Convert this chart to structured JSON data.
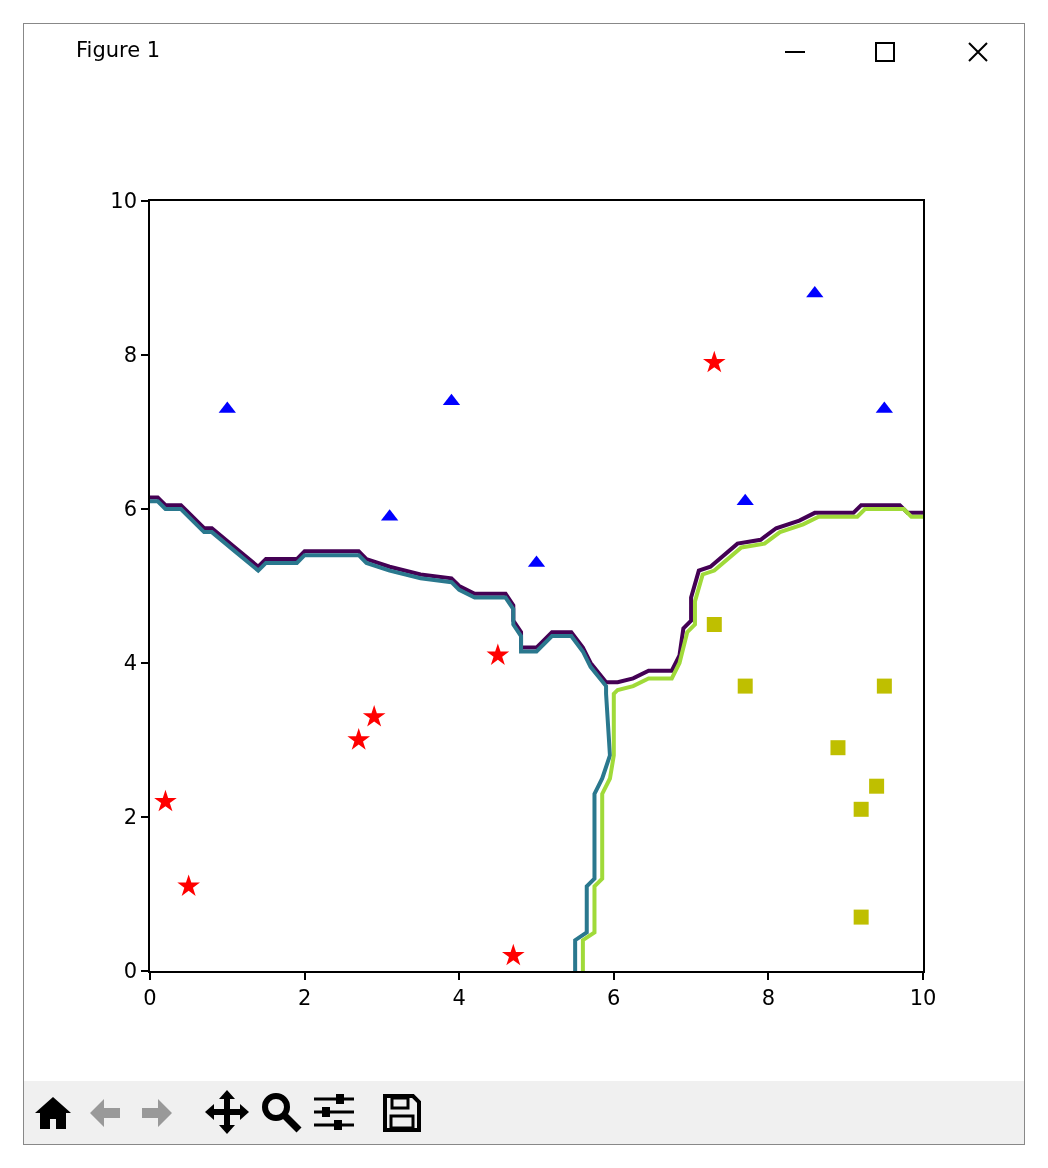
{
  "chart_data": {
    "type": "scatter",
    "annotations": [
      "Figure 1"
    ],
    "xlim": [
      0,
      10
    ],
    "ylim": [
      0,
      10
    ],
    "xticks": [
      0,
      2,
      4,
      6,
      8,
      10
    ],
    "yticks": [
      0,
      2,
      4,
      6,
      8,
      10
    ],
    "series": [
      {
        "type": "line",
        "color": "#440154",
        "marker": "none",
        "line_style": "solid",
        "x": [
          0,
          0.1,
          0.2,
          0.4,
          0.7,
          0.8,
          1.1,
          1.4,
          1.5,
          1.9,
          2.0,
          2.7,
          2.8,
          3.1,
          3.5,
          3.9,
          4.0,
          4.2,
          4.6,
          4.7,
          4.7,
          4.8,
          4.8,
          5.0,
          5.2,
          5.45,
          5.6,
          5.7,
          5.9,
          6.05,
          6.25,
          6.45,
          6.75,
          6.85,
          6.9,
          7.0,
          7.0,
          7.1,
          7.25,
          7.6,
          7.9,
          8.1,
          8.4,
          8.6,
          9.1,
          9.2,
          9.7,
          9.8,
          10
        ],
        "values": [
          6.15,
          6.15,
          6.05,
          6.05,
          5.75,
          5.75,
          5.5,
          5.25,
          5.35,
          5.35,
          5.45,
          5.45,
          5.35,
          5.25,
          5.15,
          5.1,
          5.0,
          4.9,
          4.9,
          4.75,
          4.55,
          4.4,
          4.2,
          4.2,
          4.4,
          4.4,
          4.2,
          4.0,
          3.75,
          3.75,
          3.8,
          3.9,
          3.9,
          4.1,
          4.45,
          4.55,
          4.85,
          5.2,
          5.25,
          5.55,
          5.6,
          5.75,
          5.85,
          5.95,
          5.95,
          6.05,
          6.05,
          5.95,
          5.95
        ]
      },
      {
        "type": "line",
        "color": "#2a788e",
        "marker": "none",
        "line_style": "solid",
        "x": [
          0,
          0.1,
          0.2,
          0.4,
          0.7,
          0.8,
          1.1,
          1.4,
          1.5,
          1.9,
          2.0,
          2.7,
          2.8,
          3.1,
          3.5,
          3.9,
          4.0,
          4.2,
          4.6,
          4.7,
          4.7,
          4.8,
          4.8,
          5.0,
          5.2,
          5.45,
          5.6,
          5.7,
          5.9,
          5.9,
          5.95,
          5.85,
          5.75,
          5.75,
          5.65,
          5.65,
          5.5,
          5.5
        ],
        "values": [
          6.1,
          6.1,
          6.0,
          6.0,
          5.7,
          5.7,
          5.45,
          5.2,
          5.3,
          5.3,
          5.4,
          5.4,
          5.3,
          5.2,
          5.1,
          5.05,
          4.95,
          4.85,
          4.85,
          4.7,
          4.5,
          4.35,
          4.15,
          4.15,
          4.35,
          4.35,
          4.15,
          3.95,
          3.7,
          3.6,
          2.8,
          2.5,
          2.3,
          1.2,
          1.1,
          0.5,
          0.4,
          0
        ]
      },
      {
        "type": "line",
        "color": "#a0da39",
        "marker": "none",
        "line_style": "solid",
        "x": [
          5.6,
          5.6,
          5.75,
          5.75,
          5.85,
          5.85,
          5.95,
          6.0,
          6.0,
          6.05,
          6.25,
          6.45,
          6.75,
          6.85,
          6.95,
          7.05,
          7.05,
          7.15,
          7.3,
          7.65,
          7.95,
          8.15,
          8.45,
          8.65,
          9.15,
          9.25,
          9.75,
          9.85,
          10
        ],
        "values": [
          0,
          0.4,
          0.5,
          1.1,
          1.2,
          2.3,
          2.5,
          2.8,
          3.6,
          3.65,
          3.7,
          3.8,
          3.8,
          4.0,
          4.4,
          4.5,
          4.8,
          5.15,
          5.2,
          5.5,
          5.55,
          5.7,
          5.8,
          5.9,
          5.9,
          6.0,
          6.0,
          5.9,
          5.9
        ]
      },
      {
        "type": "scatter",
        "color": "#ff0000",
        "marker": "star",
        "x": [
          0.2,
          0.5,
          2.7,
          2.9,
          4.5,
          4.7,
          7.3
        ],
        "values": [
          2.2,
          1.1,
          3.0,
          3.3,
          4.1,
          0.2,
          7.9
        ]
      },
      {
        "type": "scatter",
        "color": "#0000ff",
        "marker": "triangle",
        "x": [
          1.0,
          3.9,
          3.1,
          5.0,
          7.7,
          8.6,
          9.5
        ],
        "values": [
          7.3,
          7.4,
          5.9,
          5.3,
          6.1,
          8.8,
          7.3
        ]
      },
      {
        "type": "scatter",
        "color": "#bfbf00",
        "marker": "square",
        "x": [
          7.3,
          7.7,
          9.5,
          8.9,
          9.4,
          9.2,
          9.2
        ],
        "values": [
          4.5,
          3.7,
          3.7,
          2.9,
          2.4,
          2.1,
          0.7
        ]
      }
    ]
  }
}
